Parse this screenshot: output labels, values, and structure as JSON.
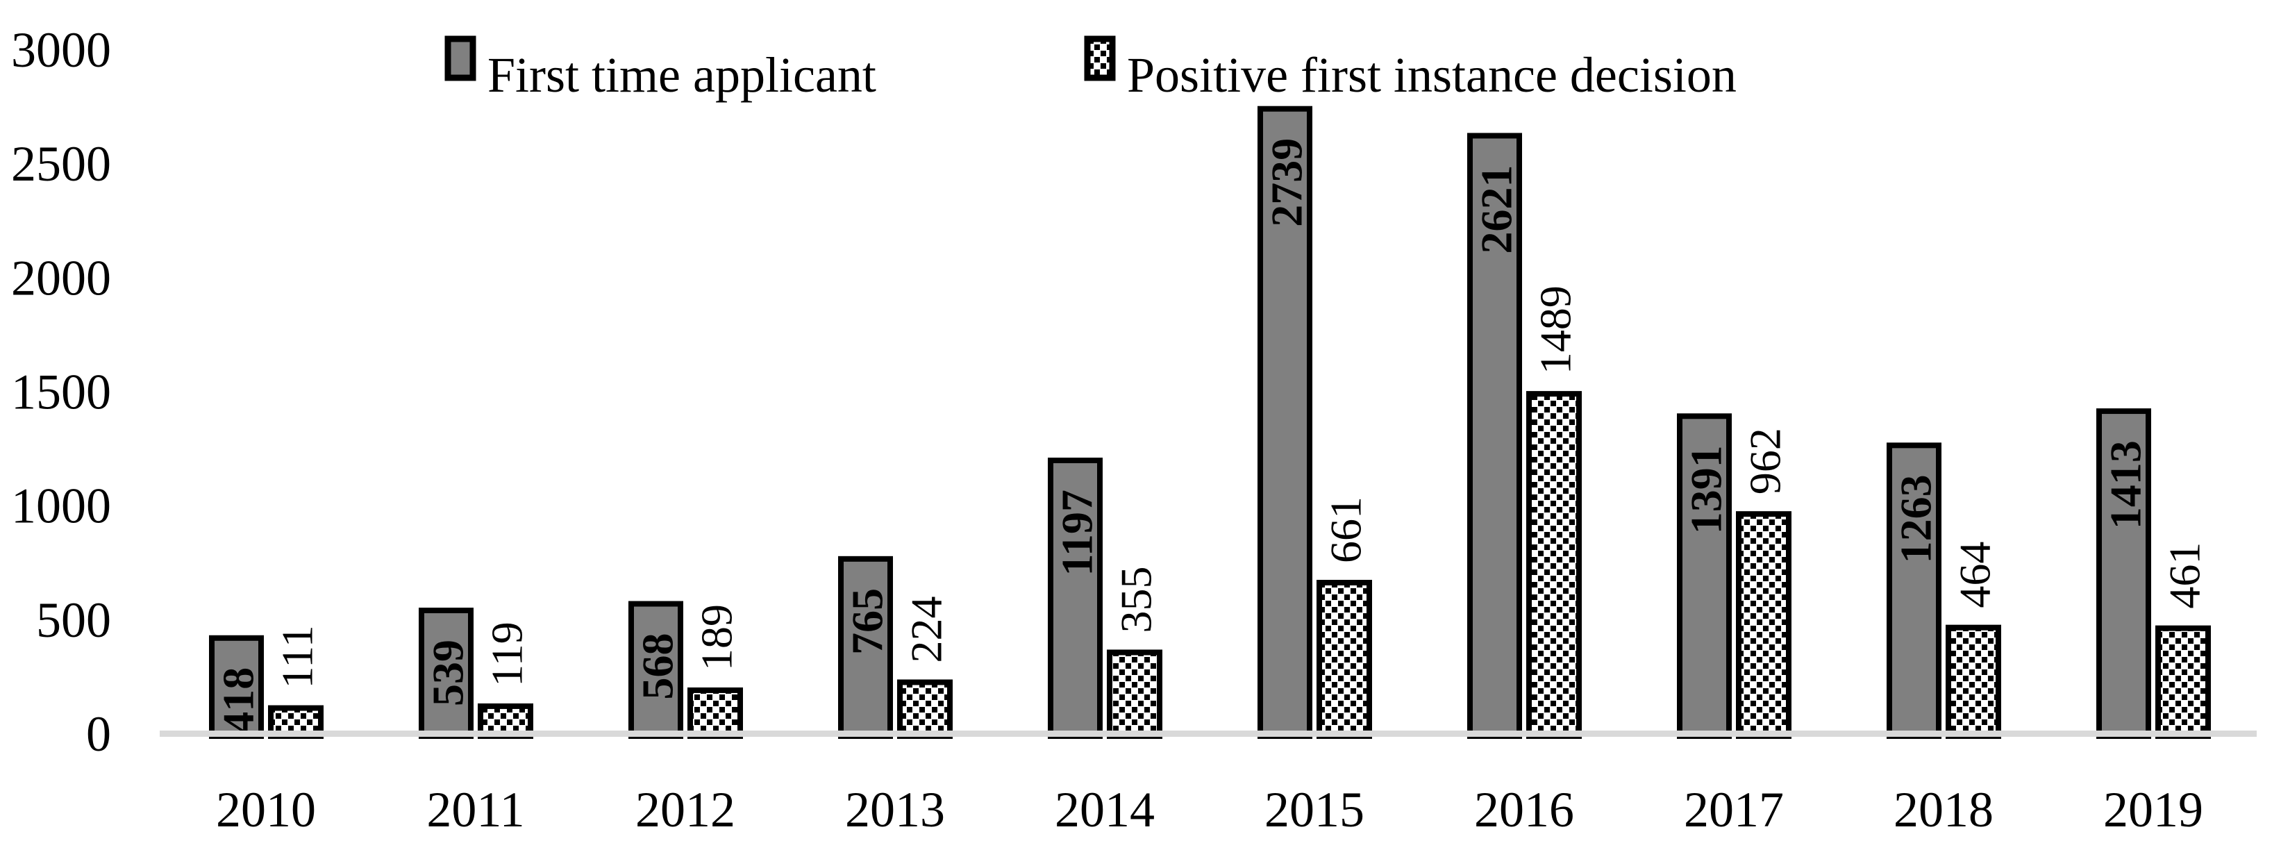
{
  "chart_data": {
    "type": "bar",
    "title": "",
    "xlabel": "",
    "ylabel": "",
    "categories": [
      "2010",
      "2011",
      "2012",
      "2013",
      "2014",
      "2015",
      "2016",
      "2017",
      "2018",
      "2019"
    ],
    "series": [
      {
        "name": "First time applicant",
        "values": [
          418,
          539,
          568,
          765,
          1197,
          2739,
          2621,
          1391,
          1263,
          1413
        ],
        "style": "solid",
        "data_label_position": "inside-end",
        "data_label_color": "#ffffff"
      },
      {
        "name": "Positive first instance decision",
        "values": [
          111,
          119,
          189,
          224,
          355,
          661,
          1489,
          962,
          464,
          461
        ],
        "style": "dotted",
        "data_label_position": "outside-end",
        "data_label_color": "#000000"
      }
    ],
    "ylim": [
      0,
      3000
    ],
    "yticks": [
      0,
      500,
      1000,
      1500,
      2000,
      2500,
      3000
    ],
    "grid": false,
    "legend_position": "top-center",
    "colors": {
      "solid_bar_fill": "#808080",
      "bar_border": "#000000",
      "dotted_bar_background": "#ffffff",
      "dot_color": "#000000",
      "axis_line": "#d9d9d9",
      "text": "#000000",
      "background": "#ffffff"
    }
  }
}
